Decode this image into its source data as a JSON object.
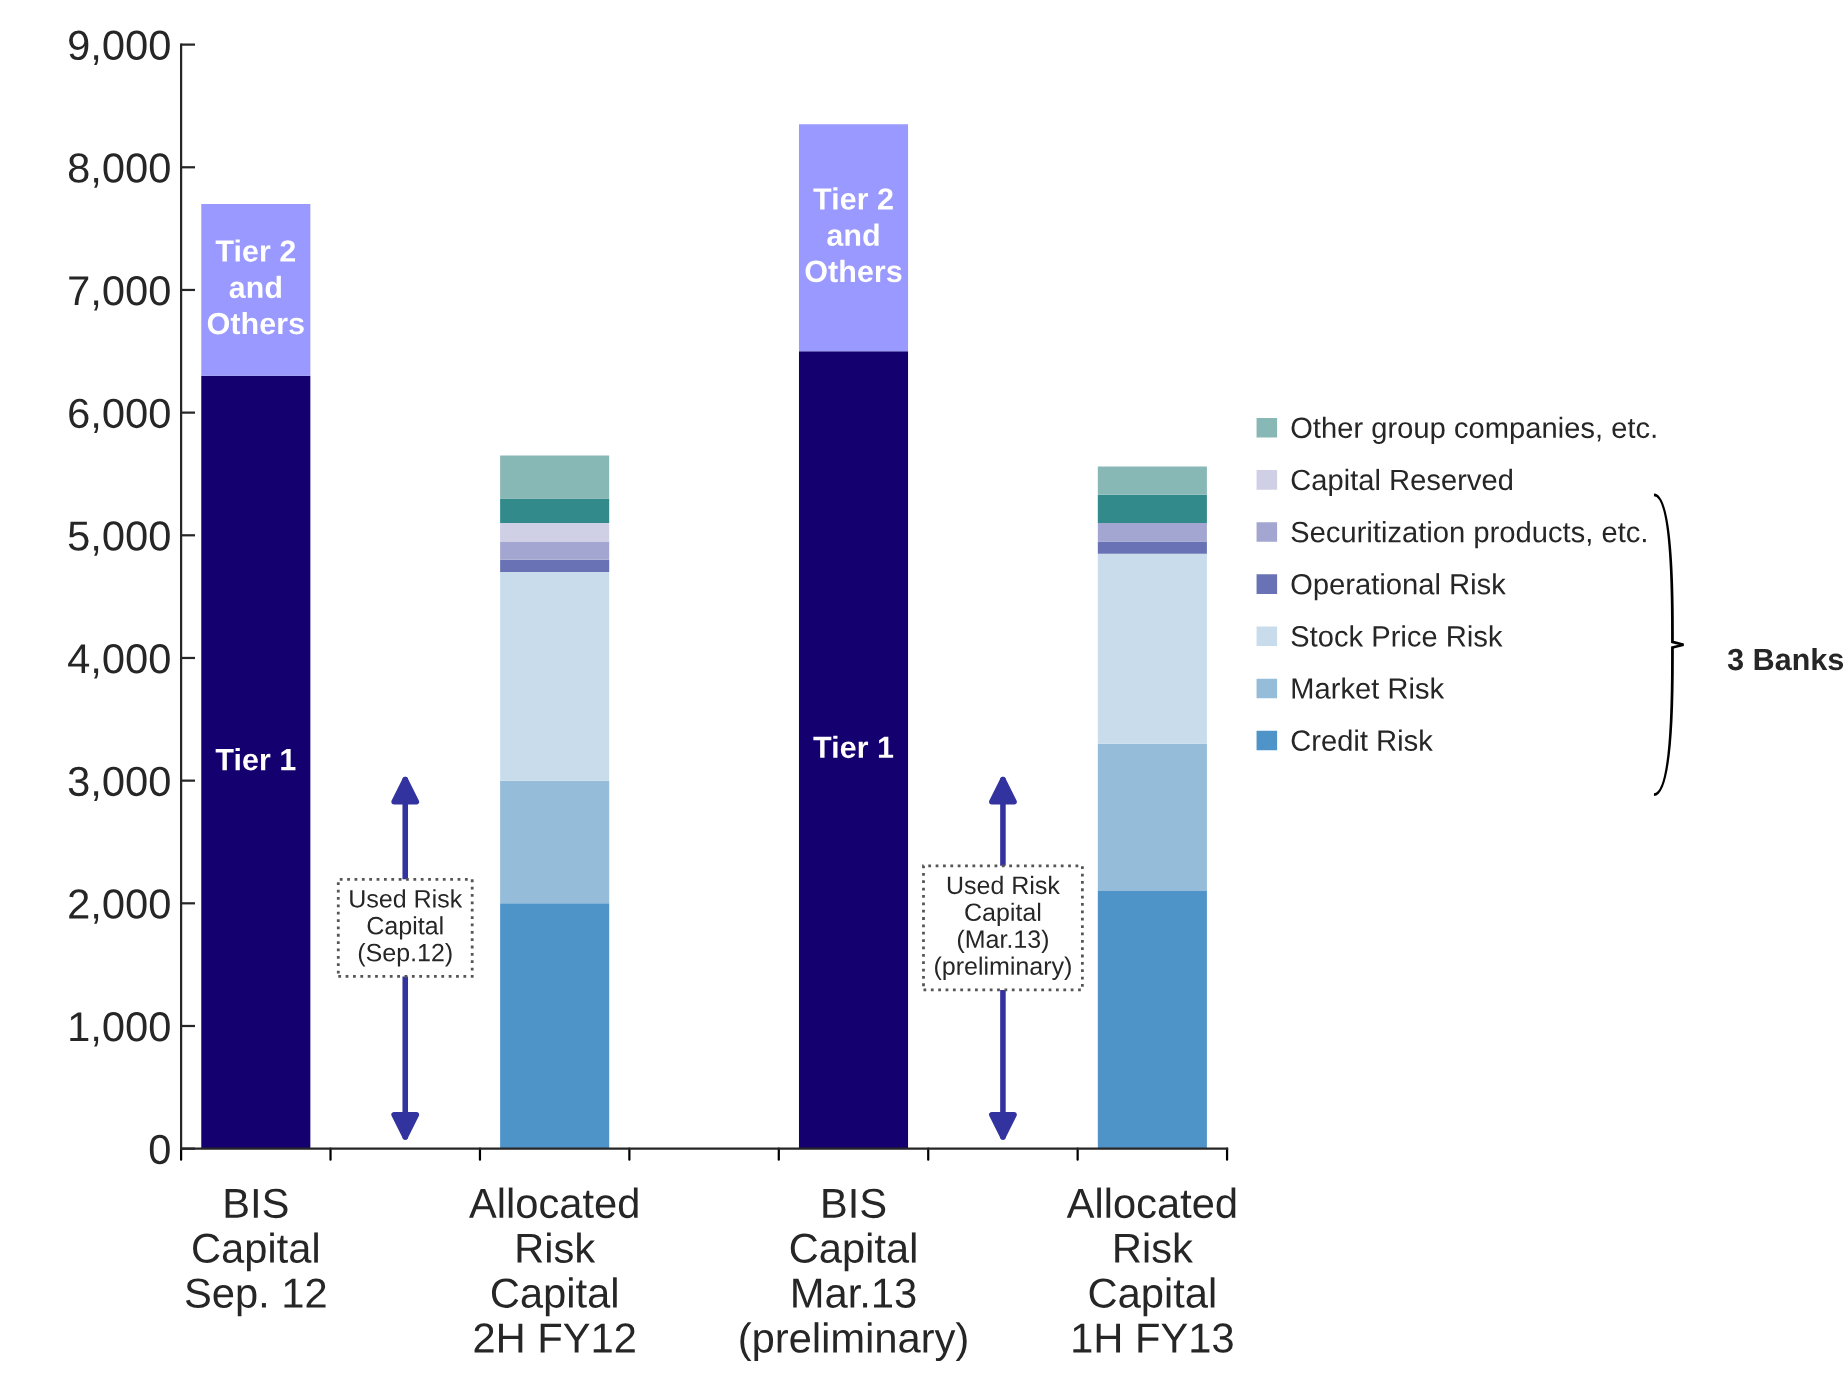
{
  "chart_data": {
    "type": "bar",
    "stacked": true,
    "categories": [
      "BIS\nCapital\nSep. 12",
      null,
      "Allocated\nRisk\nCapital\n2H FY12",
      null,
      "BIS\nCapital\nMar.13\n(preliminary)",
      null,
      "Allocated\nRisk\nCapital\n1H FY13"
    ],
    "series": [
      {
        "name": "Tier 1",
        "color": "#14006e",
        "values": [
          6300,
          null,
          null,
          null,
          6500,
          null,
          null
        ]
      },
      {
        "name": "Tier 2\nand\nOthers",
        "color": "#9999ff",
        "values": [
          1400,
          null,
          null,
          null,
          1850,
          null,
          null
        ]
      },
      {
        "name": "Credit Risk",
        "color": "#4f94c8",
        "values": [
          null,
          null,
          2000,
          null,
          null,
          null,
          2100
        ]
      },
      {
        "name": "Market Risk",
        "color": "#95bcd9",
        "values": [
          null,
          null,
          1000,
          null,
          null,
          null,
          1200
        ]
      },
      {
        "name": "Stock Price Risk",
        "color": "#c9dcec",
        "values": [
          null,
          null,
          1700,
          null,
          null,
          null,
          1550
        ]
      },
      {
        "name": "Operational Risk",
        "color": "#6872b5",
        "values": [
          null,
          null,
          100,
          null,
          null,
          null,
          100
        ]
      },
      {
        "name": "Securitization products, etc.",
        "color": "#a3a6d0",
        "values": [
          null,
          null,
          150,
          null,
          null,
          null,
          150
        ]
      },
      {
        "name": "Capital Reserved",
        "color": "#cfcfe6",
        "values": [
          null,
          null,
          150,
          null,
          null,
          null,
          0
        ]
      },
      {
        "color": "#328a8a",
        "values": [
          null,
          null,
          200,
          null,
          null,
          null,
          230
        ]
      },
      {
        "name": "Other group companies, etc.",
        "color": "#88b8b5",
        "values": [
          null,
          null,
          350,
          null,
          null,
          null,
          230
        ]
      }
    ],
    "ylim": [
      0,
      9000
    ],
    "yticks": [
      0,
      {
        "value": 1000,
        "label": "1,000"
      },
      {
        "value": 2000,
        "label": "2,000"
      },
      {
        "value": 3000,
        "label": "3,000"
      },
      {
        "value": 4000,
        "label": "4,000"
      },
      {
        "value": 5000,
        "label": "5,000"
      },
      {
        "value": 6000,
        "label": "6,000"
      },
      {
        "value": 7000,
        "label": "7,000"
      },
      {
        "value": 8000,
        "label": "8,000"
      },
      {
        "value": 9000,
        "label": "9,000"
      }
    ],
    "annotations": [
      "Used Risk\nCapital\n(Sep.12)",
      "Used Risk\nCapital\n(Mar.13)\n(preliminary)",
      "3 Banks"
    ],
    "grid": false,
    "legend": "right"
  }
}
